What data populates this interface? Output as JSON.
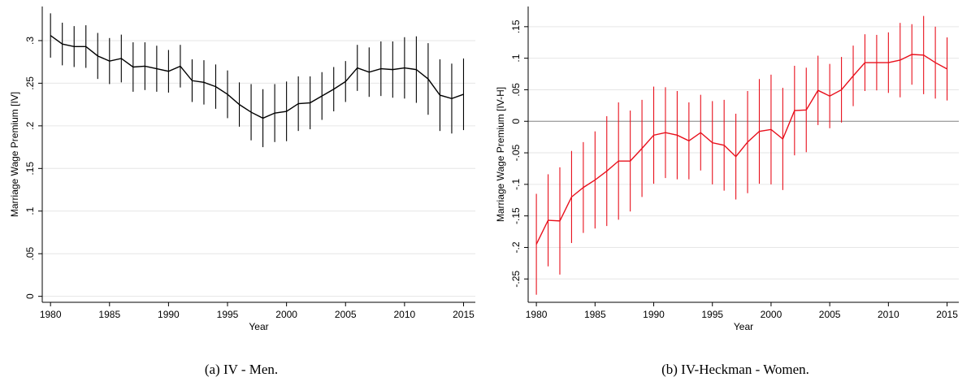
{
  "chart_data": [
    {
      "type": "errorbar-line",
      "caption": "(a) IV - Men.",
      "x_label": "Year",
      "y_label": "Marriage Wage Premium [IV]",
      "x": [
        1980,
        1981,
        1982,
        1983,
        1984,
        1985,
        1986,
        1987,
        1988,
        1989,
        1990,
        1991,
        1992,
        1993,
        1994,
        1995,
        1996,
        1997,
        1998,
        1999,
        2000,
        2001,
        2002,
        2003,
        2004,
        2005,
        2006,
        2007,
        2008,
        2009,
        2010,
        2011,
        2012,
        2013,
        2014,
        2015
      ],
      "series": [
        {
          "color": "#000000",
          "values": [
            0.306,
            0.296,
            0.293,
            0.293,
            0.282,
            0.276,
            0.279,
            0.269,
            0.27,
            0.267,
            0.264,
            0.27,
            0.253,
            0.251,
            0.246,
            0.237,
            0.225,
            0.216,
            0.209,
            0.215,
            0.217,
            0.226,
            0.227,
            0.235,
            0.243,
            0.252,
            0.268,
            0.263,
            0.267,
            0.266,
            0.268,
            0.266,
            0.255,
            0.236,
            0.232,
            0.237
          ],
          "errors": [
            0.026,
            0.025,
            0.024,
            0.025,
            0.027,
            0.027,
            0.028,
            0.029,
            0.028,
            0.027,
            0.025,
            0.025,
            0.025,
            0.026,
            0.026,
            0.028,
            0.026,
            0.033,
            0.034,
            0.034,
            0.035,
            0.032,
            0.031,
            0.028,
            0.026,
            0.024,
            0.027,
            0.029,
            0.032,
            0.033,
            0.036,
            0.039,
            0.042,
            0.042,
            0.041,
            0.042
          ]
        }
      ],
      "xlim": [
        1979.3,
        2016
      ],
      "xticks": [
        1980,
        1985,
        1990,
        1995,
        2000,
        2005,
        2010,
        2015
      ],
      "ylim": [
        -0.007,
        0.34
      ],
      "yticks": [
        0,
        {
          "value": 0.05,
          "label": ".05"
        },
        {
          "value": 0.1,
          "label": ".1"
        },
        {
          "value": 0.15,
          "label": ".15"
        },
        {
          "value": 0.2,
          "label": ".2"
        },
        {
          "value": 0.25,
          "label": ".25"
        },
        {
          "value": 0.3,
          "label": ".3"
        }
      ],
      "grid": true
    },
    {
      "type": "errorbar-line",
      "caption": "(b) IV-Heckman - Women.",
      "x_label": "Year",
      "y_label": "Marriage Wage Premium [IV-H]",
      "x": [
        1980,
        1981,
        1982,
        1983,
        1984,
        1985,
        1986,
        1987,
        1988,
        1989,
        1990,
        1991,
        1992,
        1993,
        1994,
        1995,
        1996,
        1997,
        1998,
        1999,
        2000,
        2001,
        2002,
        2003,
        2004,
        2005,
        2006,
        2007,
        2008,
        2009,
        2010,
        2011,
        2012,
        2013,
        2014,
        2015
      ],
      "series": [
        {
          "color": "#e8101c",
          "values": [
            -0.195,
            -0.157,
            -0.158,
            -0.12,
            -0.105,
            -0.093,
            -0.079,
            -0.063,
            -0.063,
            -0.043,
            -0.022,
            -0.018,
            -0.022,
            -0.031,
            -0.018,
            -0.034,
            -0.038,
            -0.056,
            -0.033,
            -0.016,
            -0.013,
            -0.028,
            0.017,
            0.018,
            0.049,
            0.04,
            0.05,
            0.072,
            0.093,
            0.093,
            0.093,
            0.097,
            0.106,
            0.105,
            0.093,
            0.083
          ],
          "errors": [
            0.08,
            0.073,
            0.085,
            0.073,
            0.072,
            0.077,
            0.087,
            0.093,
            0.08,
            0.077,
            0.077,
            0.072,
            0.07,
            0.061,
            0.06,
            0.066,
            0.072,
            0.068,
            0.081,
            0.083,
            0.087,
            0.081,
            0.071,
            0.067,
            0.055,
            0.051,
            0.052,
            0.048,
            0.045,
            0.044,
            0.048,
            0.059,
            0.048,
            0.062,
            0.057,
            0.05
          ]
        }
      ],
      "xlim": [
        1979.3,
        2016
      ],
      "xticks": [
        1980,
        1985,
        1990,
        1995,
        2000,
        2005,
        2010,
        2015
      ],
      "ylim": [
        -0.287,
        0.182
      ],
      "yticks": [
        {
          "value": -0.25,
          "label": "-.25"
        },
        {
          "value": -0.2,
          "label": "-.2"
        },
        {
          "value": -0.15,
          "label": "-.15"
        },
        {
          "value": -0.1,
          "label": "-.1"
        },
        {
          "value": -0.05,
          "label": "-.05"
        },
        0,
        {
          "value": 0.05,
          "label": ".05"
        },
        {
          "value": 0.1,
          "label": ".1"
        },
        {
          "value": 0.15,
          "label": ".15"
        }
      ],
      "reference_line": 0,
      "grid": true
    }
  ]
}
